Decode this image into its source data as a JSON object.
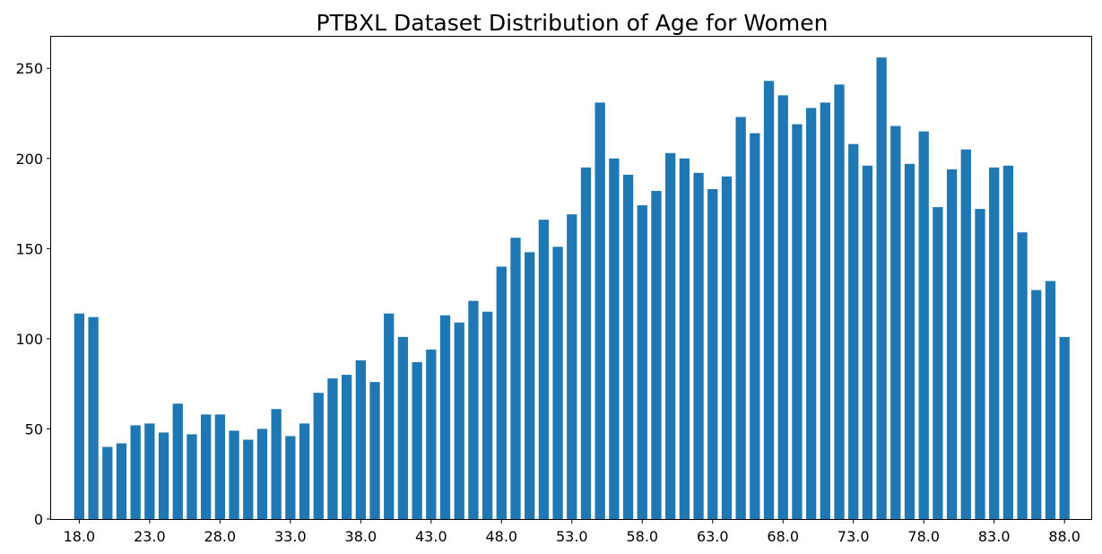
{
  "chart_data": {
    "type": "bar",
    "title": "PTBXL Dataset Distribution of Age for Women",
    "xlabel": "",
    "ylabel": "",
    "bar_color": "#1f77b4",
    "x": [
      18,
      19,
      20,
      21,
      22,
      23,
      24,
      25,
      26,
      27,
      28,
      29,
      30,
      31,
      32,
      33,
      34,
      35,
      36,
      37,
      38,
      39,
      40,
      41,
      42,
      43,
      44,
      45,
      46,
      47,
      48,
      49,
      50,
      51,
      52,
      53,
      54,
      55,
      56,
      57,
      58,
      59,
      60,
      61,
      62,
      63,
      64,
      65,
      66,
      67,
      68,
      69,
      70,
      71,
      72,
      73,
      74,
      75,
      76,
      77,
      78,
      79,
      80,
      81,
      82,
      83,
      84,
      85,
      86,
      87,
      88
    ],
    "values": [
      114,
      112,
      40,
      42,
      52,
      53,
      48,
      64,
      47,
      58,
      58,
      49,
      44,
      50,
      61,
      46,
      53,
      70,
      78,
      80,
      88,
      76,
      114,
      101,
      87,
      94,
      113,
      109,
      121,
      115,
      140,
      156,
      148,
      166,
      151,
      169,
      195,
      231,
      200,
      191,
      174,
      182,
      203,
      200,
      192,
      183,
      190,
      223,
      214,
      243,
      235,
      219,
      228,
      231,
      241,
      208,
      196,
      256,
      218,
      197,
      215,
      173,
      194,
      205,
      172,
      195,
      196,
      159,
      127,
      132,
      101
    ],
    "xticks": [
      "18.0",
      "23.0",
      "28.0",
      "33.0",
      "38.0",
      "43.0",
      "48.0",
      "53.0",
      "58.0",
      "63.0",
      "68.0",
      "73.0",
      "78.0",
      "83.0",
      "88.0"
    ],
    "xtick_values": [
      18,
      23,
      28,
      33,
      38,
      43,
      48,
      53,
      58,
      63,
      68,
      73,
      78,
      83,
      88
    ],
    "yticks": [
      "0",
      "50",
      "100",
      "150",
      "200",
      "250"
    ],
    "ytick_values": [
      0,
      50,
      100,
      150,
      200,
      250
    ],
    "xlim": [
      16.0,
      89.9
    ],
    "ylim": [
      0,
      268
    ],
    "grid": false,
    "legend": "none"
  }
}
